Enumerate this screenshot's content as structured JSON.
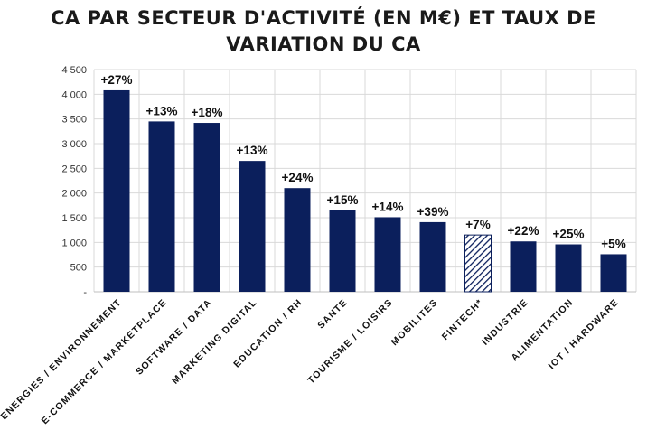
{
  "chart_data": {
    "type": "bar",
    "title_line1": "CA PAR SECTEUR D'ACTIVITÉ (EN M€) ET TAUX DE",
    "title_line2": "VARIATION DU CA",
    "xlabel": "",
    "ylabel": "",
    "ylim": [
      0,
      4500
    ],
    "ytick_labels": [
      "-",
      "500",
      "1 000",
      "1 500",
      "2 000",
      "2 500",
      "3 000",
      "3 500",
      "4 000",
      "4 500"
    ],
    "grid": true,
    "categories": [
      "ENERGIES / ENVIRONNEMENT",
      "E-COMMERCE / MARKETPLACE",
      "SOFTWARE / DATA",
      "MARKETING DIGITAL",
      "EDUCATION / RH",
      "SANTE",
      "TOURISME / LOISIRS",
      "MOBILITES",
      "FINTECH*",
      "INDUSTRIE",
      "ALIMENTATION",
      "IOT / HARDWARE"
    ],
    "values": [
      4080,
      3450,
      3420,
      2650,
      2100,
      1650,
      1510,
      1410,
      1150,
      1020,
      960,
      760
    ],
    "data_labels": [
      "+27%",
      "+13%",
      "+18%",
      "+13%",
      "+24%",
      "+15%",
      "+14%",
      "+39%",
      "+7%",
      "+22%",
      "+25%",
      "+5%"
    ],
    "hatched": [
      false,
      false,
      false,
      false,
      false,
      false,
      false,
      false,
      true,
      false,
      false,
      false
    ],
    "bar_color": "#0b1f5c",
    "grid_color": "#d9d9d9"
  }
}
